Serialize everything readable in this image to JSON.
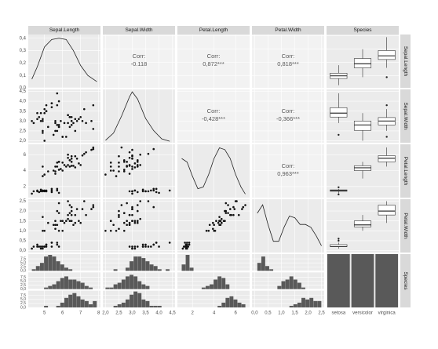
{
  "variables": [
    "Sepal.Length",
    "Sepal.Width",
    "Petal.Length",
    "Petal.Width",
    "Species"
  ],
  "species": [
    "setosa",
    "versicolor",
    "virginica"
  ],
  "corr_label": "Corr:",
  "correlations": [
    -0.118,
    {
      "value": 0.872,
      "label": "0,872***"
    },
    {
      "value": 0.818,
      "label": "0,818***"
    },
    {
      "value": -0.428,
      "label": "-0,428***"
    },
    {
      "value": -0.366,
      "label": "-0,366***"
    },
    {
      "value": 0.963,
      "label": "0,963***"
    }
  ],
  "scales": [
    {
      "lim": [
        4.1,
        8.1
      ],
      "ticks": [
        5,
        6,
        7,
        8
      ]
    },
    {
      "lim": [
        1.9,
        4.6
      ],
      "ticks": [
        {
          "value": 2,
          "label": "2,0"
        },
        {
          "value": 2.5,
          "label": "2,5"
        },
        {
          "value": 3,
          "label": "3,0"
        },
        {
          "value": 3.5,
          "label": "3,5"
        },
        {
          "value": 4,
          "label": "4,0"
        },
        {
          "value": 4.5,
          "label": "4,5"
        }
      ]
    },
    {
      "lim": [
        0.6,
        7.3
      ],
      "ticks": [
        2,
        4,
        6
      ]
    },
    {
      "lim": [
        -0.1,
        2.6
      ],
      "ticks": [
        {
          "value": 0,
          "label": "0,0"
        },
        {
          "value": 0.5,
          "label": "0,5"
        },
        {
          "value": 1,
          "label": "1,0"
        },
        {
          "value": 1.5,
          "label": "1,5"
        },
        {
          "value": 2,
          "label": "2,0"
        },
        {
          "value": 2.5,
          "label": "2,5"
        }
      ]
    }
  ],
  "density_axis": {
    "lim": [
      0,
      0.43
    ],
    "ticks": [
      {
        "value": 0,
        "label": "0,0"
      },
      {
        "value": 0.1,
        "label": "0,1"
      },
      {
        "value": 0.2,
        "label": "0,2"
      },
      {
        "value": 0.3,
        "label": "0,3"
      },
      {
        "value": 0.4,
        "label": "0,4"
      }
    ]
  },
  "densities": [
    {
      "x": [
        4.3,
        4.6,
        5.0,
        5.4,
        5.8,
        6.2,
        6.6,
        7.0,
        7.4,
        7.9
      ],
      "y": [
        0.07,
        0.17,
        0.33,
        0.39,
        0.4,
        0.39,
        0.3,
        0.18,
        0.1,
        0.05
      ],
      "lim": [
        0,
        0.43
      ]
    },
    {
      "x": [
        2.0,
        2.3,
        2.6,
        2.9,
        3.0,
        3.2,
        3.5,
        3.8,
        4.1,
        4.4
      ],
      "y": [
        0.05,
        0.2,
        0.55,
        0.95,
        1.05,
        0.9,
        0.5,
        0.25,
        0.08,
        0.03
      ],
      "lim": [
        0,
        1.1
      ]
    },
    {
      "x": [
        1.0,
        1.5,
        2.0,
        2.5,
        3.0,
        3.5,
        4.0,
        4.5,
        5.0,
        5.5,
        6.0,
        6.5,
        6.9
      ],
      "y": [
        0.22,
        0.2,
        0.12,
        0.05,
        0.06,
        0.13,
        0.22,
        0.28,
        0.27,
        0.22,
        0.13,
        0.06,
        0.02
      ],
      "lim": [
        0,
        0.3
      ]
    },
    {
      "x": [
        0.1,
        0.3,
        0.5,
        0.7,
        0.9,
        1.1,
        1.3,
        1.5,
        1.7,
        1.9,
        2.1,
        2.3,
        2.5
      ],
      "y": [
        0.7,
        0.85,
        0.5,
        0.2,
        0.2,
        0.45,
        0.65,
        0.62,
        0.5,
        0.5,
        0.45,
        0.3,
        0.12
      ],
      "lim": [
        0,
        0.95
      ]
    }
  ],
  "columns": [
    [
      5.1,
      4.9,
      4.7,
      4.6,
      5.0,
      5.4,
      4.6,
      5.0,
      4.4,
      4.9,
      5.4,
      4.8,
      4.8,
      4.3,
      5.8,
      5.7,
      5.4,
      5.1,
      5.7,
      5.1,
      7.0,
      6.4,
      6.9,
      5.5,
      6.5,
      5.7,
      6.3,
      4.9,
      6.6,
      5.2,
      5.0,
      5.9,
      6.0,
      6.1,
      5.6,
      6.7,
      5.6,
      5.8,
      6.2,
      5.6,
      6.3,
      5.8,
      7.1,
      6.3,
      6.5,
      7.6,
      4.9,
      7.3,
      6.7,
      7.2,
      6.5,
      6.4,
      6.8,
      5.7,
      5.8,
      6.4,
      6.5,
      7.7,
      7.7,
      6.0
    ],
    [
      3.5,
      3.0,
      3.2,
      3.1,
      3.6,
      3.9,
      3.4,
      3.4,
      2.9,
      3.1,
      3.7,
      3.4,
      3.0,
      3.0,
      4.0,
      4.4,
      3.9,
      3.5,
      3.8,
      3.8,
      3.2,
      3.2,
      3.1,
      2.3,
      2.8,
      2.8,
      3.3,
      2.4,
      2.9,
      2.7,
      2.0,
      3.0,
      2.2,
      2.9,
      2.9,
      3.1,
      3.0,
      2.7,
      2.2,
      2.5,
      3.3,
      2.7,
      3.0,
      2.9,
      3.0,
      3.0,
      2.5,
      2.9,
      2.5,
      3.6,
      3.2,
      2.7,
      3.0,
      2.5,
      2.8,
      3.2,
      3.0,
      3.8,
      2.6,
      2.2
    ],
    [
      1.4,
      1.4,
      1.3,
      1.5,
      1.4,
      1.7,
      1.4,
      1.5,
      1.4,
      1.5,
      1.5,
      1.6,
      1.4,
      1.1,
      1.2,
      1.5,
      1.3,
      1.4,
      1.7,
      1.5,
      4.7,
      4.5,
      4.9,
      4.0,
      4.6,
      4.5,
      4.7,
      3.3,
      4.6,
      3.9,
      3.5,
      4.2,
      4.0,
      4.7,
      3.6,
      4.4,
      4.5,
      4.1,
      4.5,
      3.9,
      6.0,
      5.1,
      5.9,
      5.6,
      5.8,
      6.6,
      4.5,
      6.3,
      5.8,
      6.1,
      5.1,
      5.3,
      5.5,
      5.0,
      5.1,
      5.3,
      5.5,
      6.7,
      6.9,
      5.0
    ],
    [
      0.2,
      0.2,
      0.2,
      0.2,
      0.2,
      0.4,
      0.3,
      0.2,
      0.2,
      0.1,
      0.2,
      0.2,
      0.1,
      0.1,
      0.2,
      0.4,
      0.4,
      0.3,
      0.3,
      0.3,
      1.4,
      1.5,
      1.5,
      1.3,
      1.5,
      1.3,
      1.6,
      1.0,
      1.3,
      1.4,
      1.0,
      1.5,
      1.0,
      1.4,
      1.3,
      1.4,
      1.5,
      1.0,
      1.5,
      1.1,
      2.5,
      1.9,
      2.1,
      1.8,
      2.2,
      2.1,
      1.7,
      1.8,
      1.8,
      2.5,
      2.0,
      1.9,
      2.1,
      2.0,
      2.4,
      2.3,
      1.8,
      2.2,
      2.3,
      1.5
    ]
  ],
  "boxes": [
    [
      {
        "min": 4.3,
        "q1": 4.8,
        "median": 5.0,
        "q3": 5.2,
        "max": 5.8,
        "outliers": []
      },
      {
        "min": 4.9,
        "q1": 5.6,
        "median": 5.9,
        "q3": 6.3,
        "max": 7.0,
        "outliers": []
      },
      {
        "min": 5.6,
        "q1": 6.225,
        "median": 6.5,
        "q3": 6.9,
        "max": 7.9,
        "outliers": [
          4.9
        ]
      }
    ],
    [
      {
        "min": 2.9,
        "q1": 3.2,
        "median": 3.4,
        "q3": 3.675,
        "max": 4.4,
        "outliers": [
          2.3
        ]
      },
      {
        "min": 2.0,
        "q1": 2.525,
        "median": 2.8,
        "q3": 3.0,
        "max": 3.4,
        "outliers": []
      },
      {
        "min": 2.5,
        "q1": 2.8,
        "median": 3.0,
        "q3": 3.175,
        "max": 3.6,
        "outliers": [
          2.2,
          3.8
        ]
      }
    ],
    [
      {
        "min": 1.1,
        "q1": 1.4,
        "median": 1.5,
        "q3": 1.575,
        "max": 1.7,
        "outliers": [
          1.0,
          1.9
        ]
      },
      {
        "min": 3.0,
        "q1": 4.0,
        "median": 4.35,
        "q3": 4.6,
        "max": 5.1,
        "outliers": []
      },
      {
        "min": 4.5,
        "q1": 5.1,
        "median": 5.55,
        "q3": 5.875,
        "max": 6.9,
        "outliers": []
      }
    ],
    [
      {
        "min": 0.1,
        "q1": 0.2,
        "median": 0.2,
        "q3": 0.3,
        "max": 0.4,
        "outliers": [
          0.5,
          0.6
        ]
      },
      {
        "min": 1.0,
        "q1": 1.2,
        "median": 1.3,
        "q3": 1.5,
        "max": 1.8,
        "outliers": []
      },
      {
        "min": 1.4,
        "q1": 1.8,
        "median": 2.0,
        "q3": 2.3,
        "max": 2.5,
        "outliers": []
      }
    ]
  ],
  "histograms": [
    {
      "bins": [
        4.3,
        4.525,
        4.75,
        4.975,
        5.2,
        5.425,
        5.65,
        5.875,
        6.1,
        6.325,
        6.55,
        6.775,
        7.0,
        7.225,
        7.45,
        7.675,
        7.9
      ],
      "counts": [
        [
          1,
          3,
          5,
          9,
          10,
          9,
          6,
          4,
          2,
          1,
          0,
          0,
          0,
          0,
          0,
          0
        ],
        [
          0,
          0,
          0,
          1,
          2,
          3,
          5,
          7,
          8,
          6,
          6,
          5,
          4,
          2,
          1,
          0
        ],
        [
          0,
          0,
          0,
          1,
          0,
          0,
          1,
          3,
          6,
          8,
          9,
          7,
          5,
          4,
          2,
          4
        ]
      ]
    },
    {
      "bins": [
        2.0,
        2.15,
        2.3,
        2.45,
        2.6,
        2.75,
        2.9,
        3.05,
        3.2,
        3.35,
        3.5,
        3.65,
        3.8,
        3.95,
        4.1,
        4.25,
        4.4
      ],
      "counts": [
        [
          0,
          0,
          1,
          0,
          0,
          2,
          6,
          9,
          9,
          8,
          6,
          4,
          3,
          1,
          0,
          1
        ],
        [
          1,
          1,
          3,
          4,
          6,
          8,
          9,
          8,
          5,
          3,
          2,
          0,
          0,
          0,
          0,
          0
        ],
        [
          0,
          0,
          1,
          2,
          3,
          5,
          8,
          10,
          9,
          5,
          4,
          1,
          1,
          1,
          0,
          0
        ]
      ]
    },
    {
      "bins": [
        1.0,
        1.37,
        1.74,
        2.11,
        2.48,
        2.85,
        3.22,
        3.59,
        3.96,
        4.33,
        4.7,
        5.07,
        5.44,
        5.81,
        6.18,
        6.55,
        6.92
      ],
      "counts": [
        [
          4,
          10,
          2,
          0,
          0,
          0,
          0,
          0,
          0,
          0,
          0,
          0,
          0,
          0,
          0,
          0
        ],
        [
          0,
          0,
          0,
          0,
          0,
          1,
          2,
          3,
          6,
          8,
          7,
          3,
          0,
          0,
          0,
          0
        ],
        [
          0,
          0,
          0,
          0,
          0,
          0,
          0,
          0,
          0,
          1,
          3,
          6,
          7,
          5,
          3,
          2
        ]
      ]
    },
    {
      "bins": [
        0.1,
        0.25,
        0.4,
        0.55,
        0.7,
        0.85,
        1.0,
        1.15,
        1.3,
        1.45,
        1.6,
        1.75,
        1.9,
        2.05,
        2.2,
        2.35,
        2.5
      ],
      "counts": [
        [
          5,
          9,
          3,
          1,
          0,
          0,
          0,
          0,
          0,
          0,
          0,
          0,
          0,
          0,
          0,
          0
        ],
        [
          0,
          0,
          0,
          0,
          0,
          2,
          5,
          6,
          8,
          6,
          4,
          1,
          0,
          0,
          0,
          0
        ],
        [
          0,
          0,
          0,
          0,
          0,
          0,
          0,
          0,
          1,
          2,
          3,
          6,
          5,
          6,
          4,
          4
        ]
      ]
    }
  ],
  "histogram_axis": {
    "lim": [
      0,
      10.5
    ],
    "ticks": [
      {
        "value": 0,
        "label": "0,0"
      },
      {
        "value": 2.5,
        "label": "2,5"
      },
      {
        "value": 5,
        "label": "5,0"
      },
      {
        "value": 7.5,
        "label": "7,5"
      }
    ]
  },
  "species_counts": [
    50,
    50,
    50
  ],
  "species_count_lim": [
    0,
    50
  ]
}
